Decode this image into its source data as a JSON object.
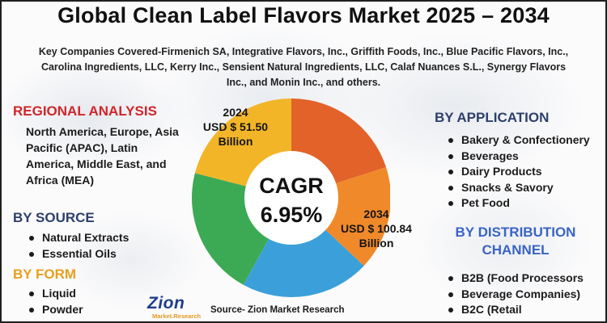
{
  "title": "Global Clean Label Flavors Market 2025 – 2034",
  "companies": "Key Companies Covered-Firmenich SA, Integrative Flavors, Inc., Griffith Foods, Inc., Blue Pacific Flavors, Inc., Carolina Ingredients, LLC, Kerry Inc., Sensient Natural Ingredients, LLC, Calaf Nuances S.L., Synergy Flavors Inc., and Monin Inc., and others.",
  "regional": {
    "heading": "REGIONAL ANALYSIS",
    "text": "North America, Europe, Asia Pacific (APAC), Latin America, Middle East, and Africa (MEA)"
  },
  "by_source": {
    "heading": "BY SOURCE",
    "items": [
      "Natural Extracts",
      "Essential Oils"
    ]
  },
  "by_form": {
    "heading": "BY FORM",
    "items": [
      "Liquid",
      "Powder"
    ]
  },
  "by_application": {
    "heading": "BY APPLICATION",
    "items": [
      "Bakery & Confectionery",
      "Beverages",
      "Dairy Products",
      "Snacks & Savory",
      "Pet Food"
    ]
  },
  "by_distribution": {
    "heading_line1": "BY DISTRIBUTION",
    "heading_line2": "CHANNEL",
    "items": [
      "B2B (Food Processors",
      "Beverage Companies)",
      "B2C (Retail"
    ]
  },
  "market": {
    "year_2024": "2024",
    "value_2024_line1": "USD $ 51.50",
    "value_2024_line2": "Billion",
    "year_2034": "2034",
    "value_2034_line1": "USD $ 100.84",
    "value_2034_line2": "Billion",
    "cagr_label": "CAGR",
    "cagr_value": "6.95%"
  },
  "donut": {
    "segments": [
      {
        "value": 20,
        "color": "#e2622a"
      },
      {
        "value": 17,
        "color": "#f0892a"
      },
      {
        "value": 21,
        "color": "#3ba0da"
      },
      {
        "value": 21,
        "color": "#3caa55"
      },
      {
        "value": 21,
        "color": "#f2b528"
      }
    ],
    "center_color": "#ffffff"
  },
  "logo": {
    "word": "Zion",
    "sub": "Market.Research"
  },
  "source": "Source- Zion Market Research"
}
